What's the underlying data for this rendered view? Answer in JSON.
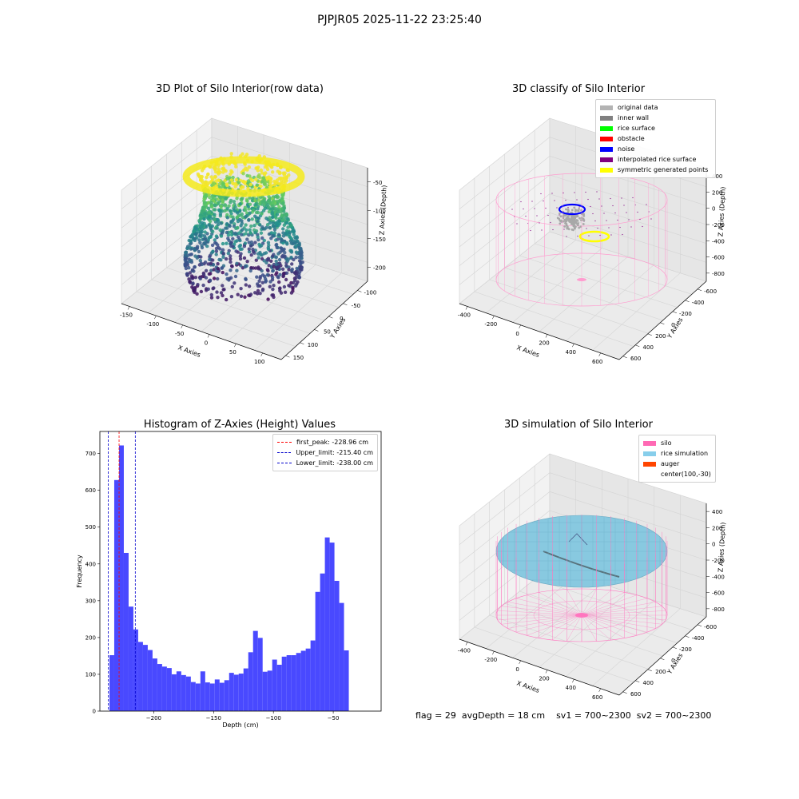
{
  "suptitle": "PJPJR05 2025-11-22 23:25:40",
  "panel1": {
    "title": "3D Plot of Silo Interior(row data)",
    "xlabel": "X Axies",
    "ylabel": "Y Axies",
    "zlabel": "Z Axies (Depth)",
    "xticks": [
      "-150",
      "-100",
      "-50",
      "0",
      "50",
      "100"
    ],
    "yticks": [
      "150",
      "100",
      "50",
      "0",
      "-50",
      "-100"
    ],
    "zticks": [
      "-50",
      "-100",
      "-150",
      "-200"
    ]
  },
  "panel2": {
    "title": "3D classify of Silo Interior",
    "xlabel": "X Axies",
    "ylabel": "Y Axies",
    "zlabel": "Z Axies (Depth)",
    "xticks": [
      "-400",
      "-200",
      "0",
      "200",
      "400",
      "600"
    ],
    "yticks": [
      "600",
      "400",
      "200",
      "0",
      "-200",
      "-400",
      "-600"
    ],
    "zticks": [
      "400",
      "200",
      "0",
      "-200",
      "-400",
      "-600",
      "-800"
    ],
    "legend": [
      {
        "label": "original data",
        "color": "#b3b3b3"
      },
      {
        "label": "inner wall",
        "color": "#808080"
      },
      {
        "label": "rice surface",
        "color": "#00ff00"
      },
      {
        "label": "obstacle",
        "color": "#ff0000"
      },
      {
        "label": "noise",
        "color": "#0000ff"
      },
      {
        "label": "interpolated rice surface",
        "color": "#800080"
      },
      {
        "label": "symmetric generated points",
        "color": "#ffff00"
      }
    ]
  },
  "panel4": {
    "title": "3D simulation of Silo Interior",
    "xlabel": "X Axies",
    "ylabel": "Y Axies",
    "zlabel": "Z Axies (Depth)",
    "xticks": [
      "-400",
      "-200",
      "0",
      "200",
      "400",
      "600"
    ],
    "yticks": [
      "600",
      "400",
      "200",
      "0",
      "-200",
      "-400",
      "-600"
    ],
    "zticks": [
      "400",
      "200",
      "0",
      "-200",
      "-400",
      "-600",
      "-800"
    ],
    "legend": [
      {
        "label": "silo",
        "color": "#ff69b4"
      },
      {
        "label": "rice simulation",
        "color": "#87ceeb"
      },
      {
        "label": "auger",
        "color": "#ff4500"
      },
      {
        "label": "center(100,-30)",
        "color": ""
      }
    ]
  },
  "chart_data": {
    "type": "bar",
    "title": "Histogram of Z-Axies (Height) Values",
    "xlabel": "Depth (cm)",
    "ylabel": "Frequency",
    "xlim": [
      -245,
      -10
    ],
    "ylim": [
      0,
      760
    ],
    "xticks": [
      -200,
      -150,
      -100,
      -50
    ],
    "yticks": [
      0,
      100,
      200,
      300,
      400,
      500,
      600,
      700
    ],
    "bin_start": -237,
    "bin_width": 4,
    "bar_color": "#4949ff",
    "values": [
      152,
      628,
      722,
      430,
      284,
      222,
      188,
      180,
      166,
      143,
      128,
      121,
      117,
      100,
      108,
      98,
      94,
      79,
      75,
      108,
      78,
      75,
      86,
      77,
      84,
      104,
      99,
      102,
      116,
      160,
      218,
      199,
      107,
      110,
      140,
      126,
      148,
      152,
      152,
      158,
      164,
      170,
      192,
      324,
      374,
      472,
      458,
      354,
      294,
      165
    ],
    "vlines": [
      {
        "label": "first_peak: -228.96 cm",
        "x": -228.96,
        "color": "#ff0000"
      },
      {
        "label": "Upper_limit: -215.40 cm",
        "x": -215.4,
        "color": "#0000cc"
      },
      {
        "label": "Lower_limit: -238.00 cm",
        "x": -238.0,
        "color": "#0000cc"
      }
    ]
  },
  "status": {
    "flag": "flag = 29",
    "avgdepth": "avgDepth = 18 cm",
    "sv1": "sv1 = 700~2300",
    "sv2": "sv2 = 700~2300"
  }
}
